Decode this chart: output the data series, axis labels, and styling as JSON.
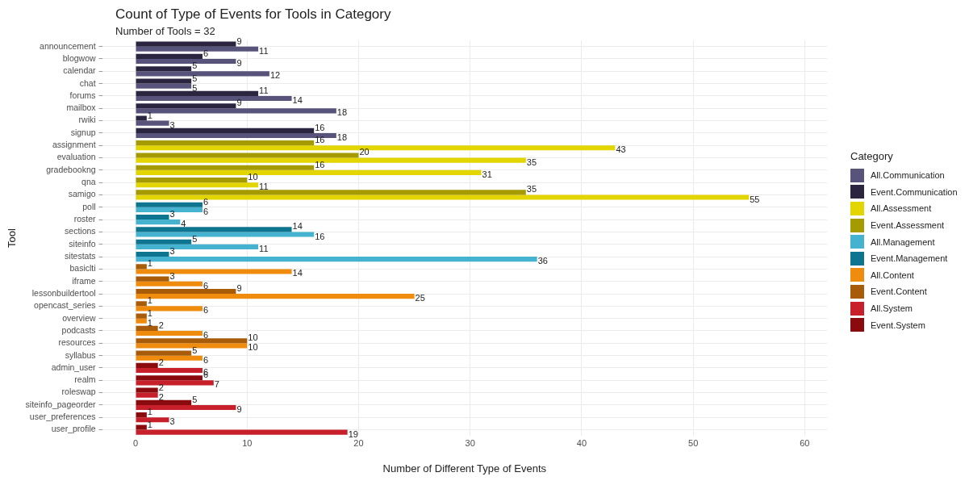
{
  "chart_data": {
    "type": "bar",
    "orientation": "horizontal",
    "title": "Count of Type of Events for Tools in Category",
    "subtitle": "Number of Tools = 32",
    "xlabel": "Number of Different Type of Events",
    "ylabel": "Tool",
    "legend_title": "Category",
    "legend": "right",
    "grid": true,
    "data_labels": true,
    "categories": [
      "announcement",
      "blogwow",
      "calendar",
      "chat",
      "forums",
      "mailbox",
      "rwiki",
      "signup",
      "assignment",
      "evaluation",
      "gradebookng",
      "qna",
      "samigo",
      "poll",
      "roster",
      "sections",
      "siteinfo",
      "sitestats",
      "basiclti",
      "iframe",
      "lessonbuildertool",
      "opencast_series",
      "overview",
      "podcasts",
      "resources",
      "syllabus",
      "admin_user",
      "realm",
      "roleswap",
      "siteinfo_pageorder",
      "user_preferences",
      "user_profile"
    ],
    "xlim": [
      -3,
      62
    ],
    "xticks": [
      0,
      10,
      20,
      30,
      40,
      50,
      60
    ],
    "series": [
      {
        "name": "All.Communication",
        "color": "#58537a",
        "values": [
          11,
          9,
          12,
          5,
          14,
          18,
          3,
          18,
          null,
          null,
          null,
          null,
          null,
          null,
          null,
          null,
          null,
          null,
          null,
          null,
          null,
          null,
          null,
          null,
          null,
          null,
          null,
          null,
          null,
          null,
          null,
          null
        ]
      },
      {
        "name": "Event.Communication",
        "color": "#2b2540",
        "values": [
          9,
          6,
          5,
          5,
          11,
          9,
          1,
          16,
          null,
          null,
          null,
          null,
          null,
          null,
          null,
          null,
          null,
          null,
          null,
          null,
          null,
          null,
          null,
          null,
          null,
          null,
          null,
          null,
          null,
          null,
          null,
          null
        ]
      },
      {
        "name": "All.Assessment",
        "color": "#e3d500",
        "values": [
          null,
          null,
          null,
          null,
          null,
          null,
          null,
          null,
          43,
          35,
          31,
          11,
          55,
          null,
          null,
          null,
          null,
          null,
          null,
          null,
          null,
          null,
          null,
          null,
          null,
          null,
          null,
          null,
          null,
          null,
          null,
          null
        ]
      },
      {
        "name": "Event.Assessment",
        "color": "#a59a00",
        "values": [
          null,
          null,
          null,
          null,
          null,
          null,
          null,
          null,
          16,
          20,
          16,
          10,
          35,
          null,
          null,
          null,
          null,
          null,
          null,
          null,
          null,
          null,
          null,
          null,
          null,
          null,
          null,
          null,
          null,
          null,
          null,
          null
        ]
      },
      {
        "name": "All.Management",
        "color": "#45b2cf",
        "values": [
          null,
          null,
          null,
          null,
          null,
          null,
          null,
          null,
          null,
          null,
          null,
          null,
          null,
          6,
          4,
          16,
          11,
          36,
          null,
          null,
          null,
          null,
          null,
          null,
          null,
          null,
          null,
          null,
          null,
          null,
          null,
          null
        ]
      },
      {
        "name": "Event.Management",
        "color": "#0e7591",
        "values": [
          null,
          null,
          null,
          null,
          null,
          null,
          null,
          null,
          null,
          null,
          null,
          null,
          null,
          6,
          3,
          14,
          5,
          3,
          null,
          null,
          null,
          null,
          null,
          null,
          null,
          null,
          null,
          null,
          null,
          null,
          null,
          null
        ]
      },
      {
        "name": "All.Content",
        "color": "#ef8c0e",
        "values": [
          null,
          null,
          null,
          null,
          null,
          null,
          null,
          null,
          null,
          null,
          null,
          null,
          null,
          null,
          null,
          null,
          null,
          null,
          14,
          6,
          25,
          6,
          1,
          6,
          10,
          6,
          null,
          null,
          null,
          null,
          null,
          null
        ]
      },
      {
        "name": "Event.Content",
        "color": "#a85c0a",
        "values": [
          null,
          null,
          null,
          null,
          null,
          null,
          null,
          null,
          null,
          null,
          null,
          null,
          null,
          null,
          null,
          null,
          null,
          null,
          1,
          3,
          9,
          1,
          1,
          2,
          10,
          5,
          null,
          null,
          null,
          null,
          null,
          null
        ]
      },
      {
        "name": "All.System",
        "color": "#c8202b",
        "values": [
          null,
          null,
          null,
          null,
          null,
          null,
          null,
          null,
          null,
          null,
          null,
          null,
          null,
          null,
          null,
          null,
          null,
          null,
          null,
          null,
          null,
          null,
          null,
          null,
          null,
          null,
          6,
          7,
          2,
          9,
          3,
          19
        ]
      },
      {
        "name": "Event.System",
        "color": "#8b0a0d",
        "values": [
          null,
          null,
          null,
          null,
          null,
          null,
          null,
          null,
          null,
          null,
          null,
          null,
          null,
          null,
          null,
          null,
          null,
          null,
          null,
          null,
          null,
          null,
          null,
          null,
          null,
          null,
          2,
          6,
          2,
          5,
          1,
          1
        ]
      }
    ]
  }
}
